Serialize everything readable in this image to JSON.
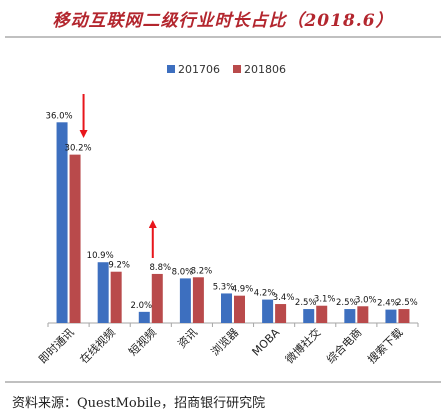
{
  "title": "移动互联网二级行业时长占比（2018.6）",
  "source": "资料来源：QuestMobile，招商银行研究院",
  "chart_data": {
    "type": "bar",
    "categories": [
      "即时通讯",
      "在线视频",
      "短视频",
      "资讯",
      "浏览器",
      "MOBA",
      "微博社交",
      "综合电商",
      "搜索下载"
    ],
    "series": [
      {
        "name": "201706",
        "values": [
          36.0,
          10.9,
          2.0,
          8.0,
          5.3,
          4.2,
          2.5,
          2.5,
          2.4
        ],
        "labels": [
          "36.0%",
          "10.9%",
          "2.0%",
          "8.0%",
          "5.3%",
          "4.2%",
          "2.5%",
          "2.5%",
          "2.4%"
        ],
        "color": "#3d6fbf"
      },
      {
        "name": "201806",
        "values": [
          30.2,
          9.2,
          8.8,
          8.2,
          4.9,
          3.4,
          3.1,
          3.0,
          2.5
        ],
        "labels": [
          "30.2%",
          "9.2%",
          "8.8%",
          "8.2%",
          "4.9%",
          "3.4%",
          "3.1%",
          "3.0%",
          "2.5%"
        ],
        "color": "#b94a4b"
      }
    ],
    "ylim": [
      0,
      40
    ],
    "grid": false,
    "legend_position": "top",
    "annotations": [
      {
        "type": "arrow",
        "direction": "down",
        "category": "即时通讯",
        "color": "#e8151b"
      },
      {
        "type": "arrow",
        "direction": "up",
        "category": "短视频",
        "color": "#e8151b"
      }
    ]
  }
}
